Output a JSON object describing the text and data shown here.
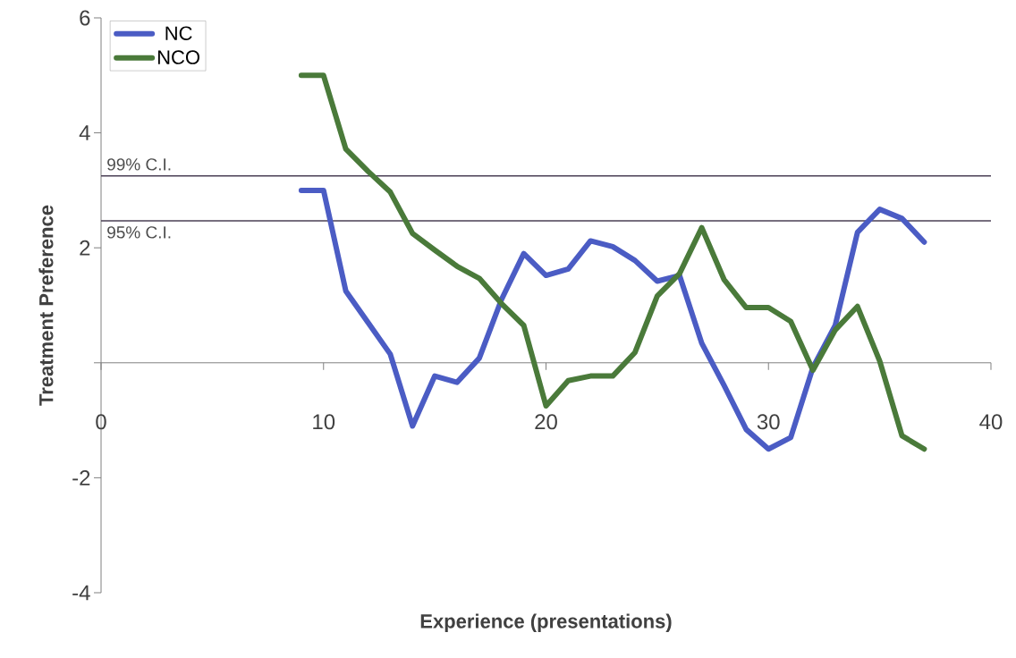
{
  "chart_data": {
    "type": "line",
    "xlabel": "Experience (presentations)",
    "ylabel": "Treatment Preference",
    "x": [
      9,
      10,
      11,
      12,
      13,
      14,
      15,
      16,
      17,
      18,
      19,
      20,
      21,
      22,
      23,
      24,
      25,
      26,
      27,
      28,
      29,
      30,
      31,
      32,
      33,
      34,
      35,
      36,
      37
    ],
    "series": [
      {
        "name": "NC",
        "color": "#4b5cc4",
        "values": [
          3.0,
          3.0,
          1.25,
          0.7,
          0.15,
          -1.1,
          -0.23,
          -0.34,
          0.08,
          1.1,
          1.9,
          1.52,
          1.63,
          2.12,
          2.02,
          1.78,
          1.42,
          1.52,
          0.34,
          -0.39,
          -1.16,
          -1.5,
          -1.3,
          -0.08,
          0.65,
          2.27,
          2.67,
          2.51,
          2.1
        ]
      },
      {
        "name": "NCO",
        "color": "#4a7a3a",
        "values": [
          5.0,
          5.0,
          3.72,
          3.33,
          2.97,
          2.25,
          1.96,
          1.68,
          1.47,
          1.03,
          0.65,
          -0.75,
          -0.31,
          -0.23,
          -0.23,
          0.18,
          1.16,
          1.55,
          2.35,
          1.45,
          0.96,
          0.96,
          0.72,
          -0.13,
          0.57,
          0.98,
          0.03,
          -1.27,
          -1.5
        ]
      }
    ],
    "xlim": [
      0,
      40
    ],
    "xticks": [
      0,
      10,
      20,
      30,
      40
    ],
    "ylim": [
      -4,
      6
    ],
    "yticks": [
      -4,
      -2,
      {
        "value": 0,
        "label": null
      },
      2,
      4,
      6
    ],
    "ref_lines": [
      {
        "axis": "y",
        "value": 3.25,
        "label": "99% C.I.",
        "color": "#4a3f55"
      },
      {
        "axis": "y",
        "value": 2.47,
        "label": "95% C.I.",
        "color": "#4a3f55"
      }
    ],
    "legend": "top left",
    "grid": false,
    "marker": "none",
    "line_style": "solid"
  }
}
